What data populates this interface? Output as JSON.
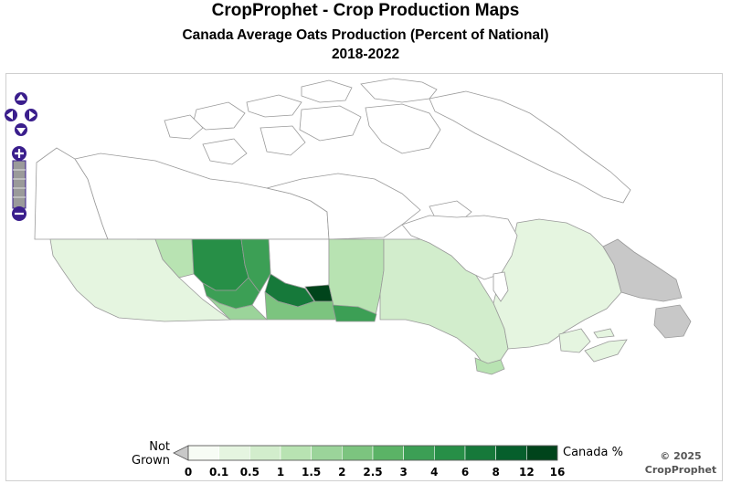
{
  "header": {
    "title": "CropProphet - Crop Production Maps",
    "subtitle": "Canada Average Oats Production (Percent of National)",
    "period": "2018-2022"
  },
  "map": {
    "region": "Canada",
    "crop": "Oats",
    "metric": "Percent of National",
    "controls": [
      "pan-up",
      "pan-left",
      "pan-right",
      "pan-down",
      "zoom-in",
      "zoom-out"
    ],
    "colors": {
      "not_grown": "#c8c8c8",
      "no_data": "#ffffff",
      "border": "#9a9a9a"
    }
  },
  "legend": {
    "not_grown_label": "Not Grown",
    "unit_label": "Canada %",
    "ticks": [
      "0",
      "0.1",
      "0.5",
      "1",
      "1.5",
      "2",
      "2.5",
      "3",
      "4",
      "6",
      "8",
      "12",
      "16"
    ],
    "colors": [
      "#f7fcf5",
      "#e5f5e0",
      "#d2edcc",
      "#b8e3b2",
      "#9bd49a",
      "#7cc47f",
      "#5bb366",
      "#3c9f55",
      "#278f47",
      "#16793a",
      "#065f2c",
      "#00441b"
    ]
  },
  "footer": {
    "copyright_line1": "© 2025",
    "copyright_line2": "CropProphet"
  }
}
